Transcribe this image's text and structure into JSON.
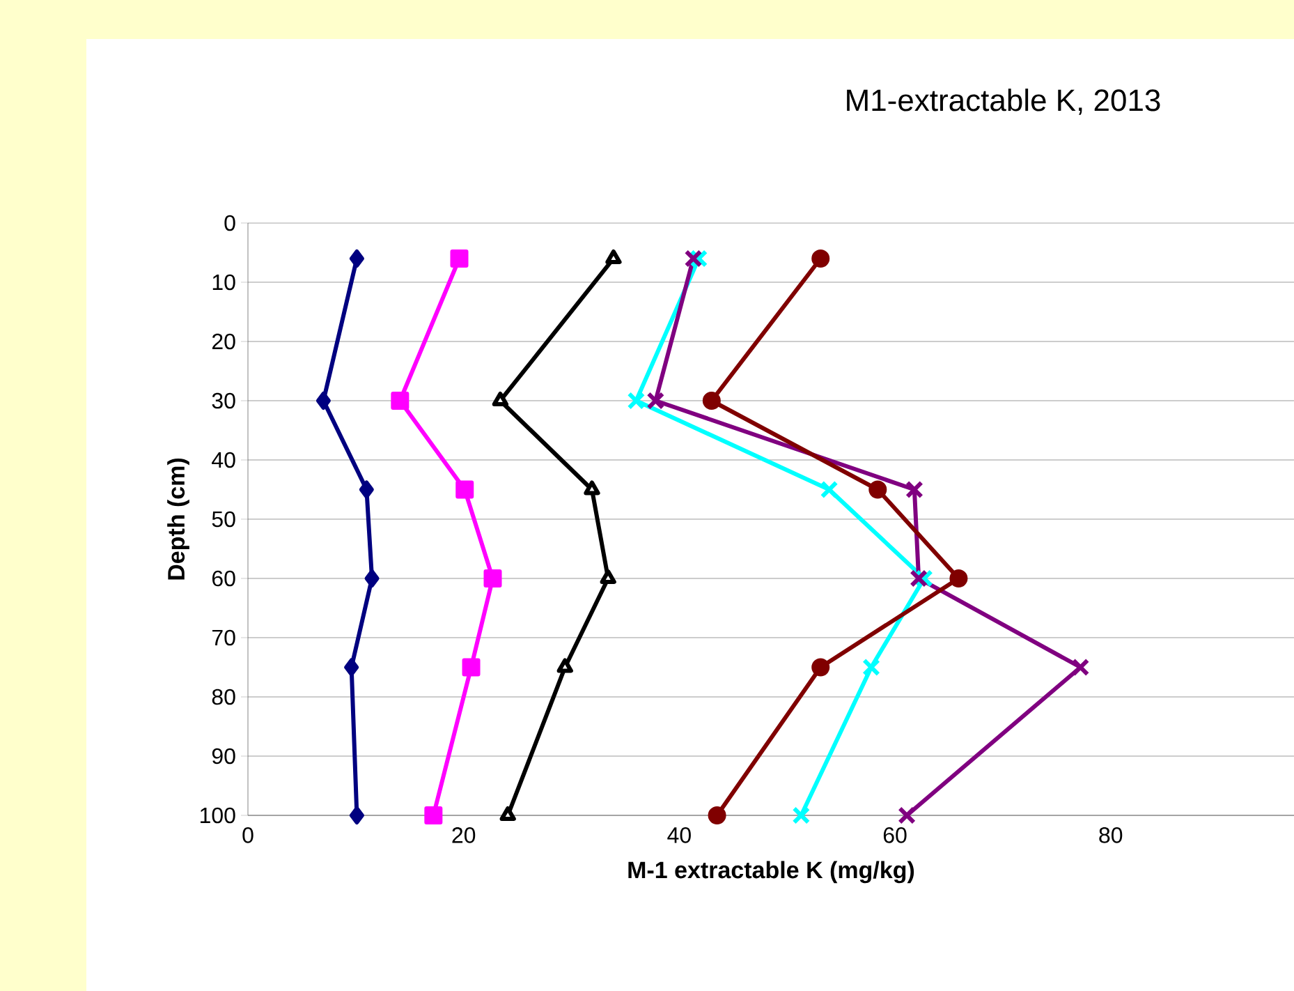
{
  "chart_data": {
    "type": "line",
    "title": "M1-extractable K,  2013",
    "xlabel": "M-1 extractable K (mg/kg)",
    "ylabel": "Depth (cm)",
    "xlim": [
      0,
      97
    ],
    "xticks": [
      0,
      20,
      40,
      60,
      80
    ],
    "ylim": [
      100,
      0
    ],
    "yticks": [
      0,
      10,
      20,
      30,
      40,
      50,
      60,
      70,
      80,
      90,
      100
    ],
    "grid": "y",
    "line_style": "solid",
    "series": [
      {
        "color": "#000080",
        "marker": "diamond",
        "x": [
          10.1,
          7.0,
          11.0,
          11.5,
          9.6,
          10.1
        ],
        "values": [
          6,
          30,
          45,
          60,
          75,
          100
        ]
      },
      {
        "color": "#ff00ff",
        "marker": "square",
        "x": [
          19.6,
          14.1,
          20.1,
          22.7,
          20.7,
          17.2
        ],
        "values": [
          6,
          30,
          45,
          60,
          75,
          100
        ]
      },
      {
        "color": "#000000",
        "marker": "triangle",
        "x": [
          33.9,
          23.4,
          31.9,
          33.4,
          29.4,
          24.1
        ],
        "values": [
          6,
          30,
          45,
          60,
          75,
          100
        ]
      },
      {
        "color": "#00ffff",
        "marker": "cross",
        "x": [
          41.8,
          36.0,
          53.9,
          62.7,
          57.8,
          51.3
        ],
        "values": [
          6,
          30,
          45,
          60,
          75,
          100
        ]
      },
      {
        "color": "#800080",
        "marker": "cross",
        "x": [
          41.3,
          37.8,
          61.8,
          62.2,
          77.2,
          61.1
        ],
        "values": [
          6,
          30,
          45,
          60,
          75,
          100
        ]
      },
      {
        "color": "#800000",
        "marker": "circle",
        "x": [
          53.1,
          43.0,
          58.4,
          65.9,
          53.1,
          43.5
        ],
        "values": [
          6,
          30,
          45,
          60,
          75,
          100
        ]
      }
    ]
  }
}
